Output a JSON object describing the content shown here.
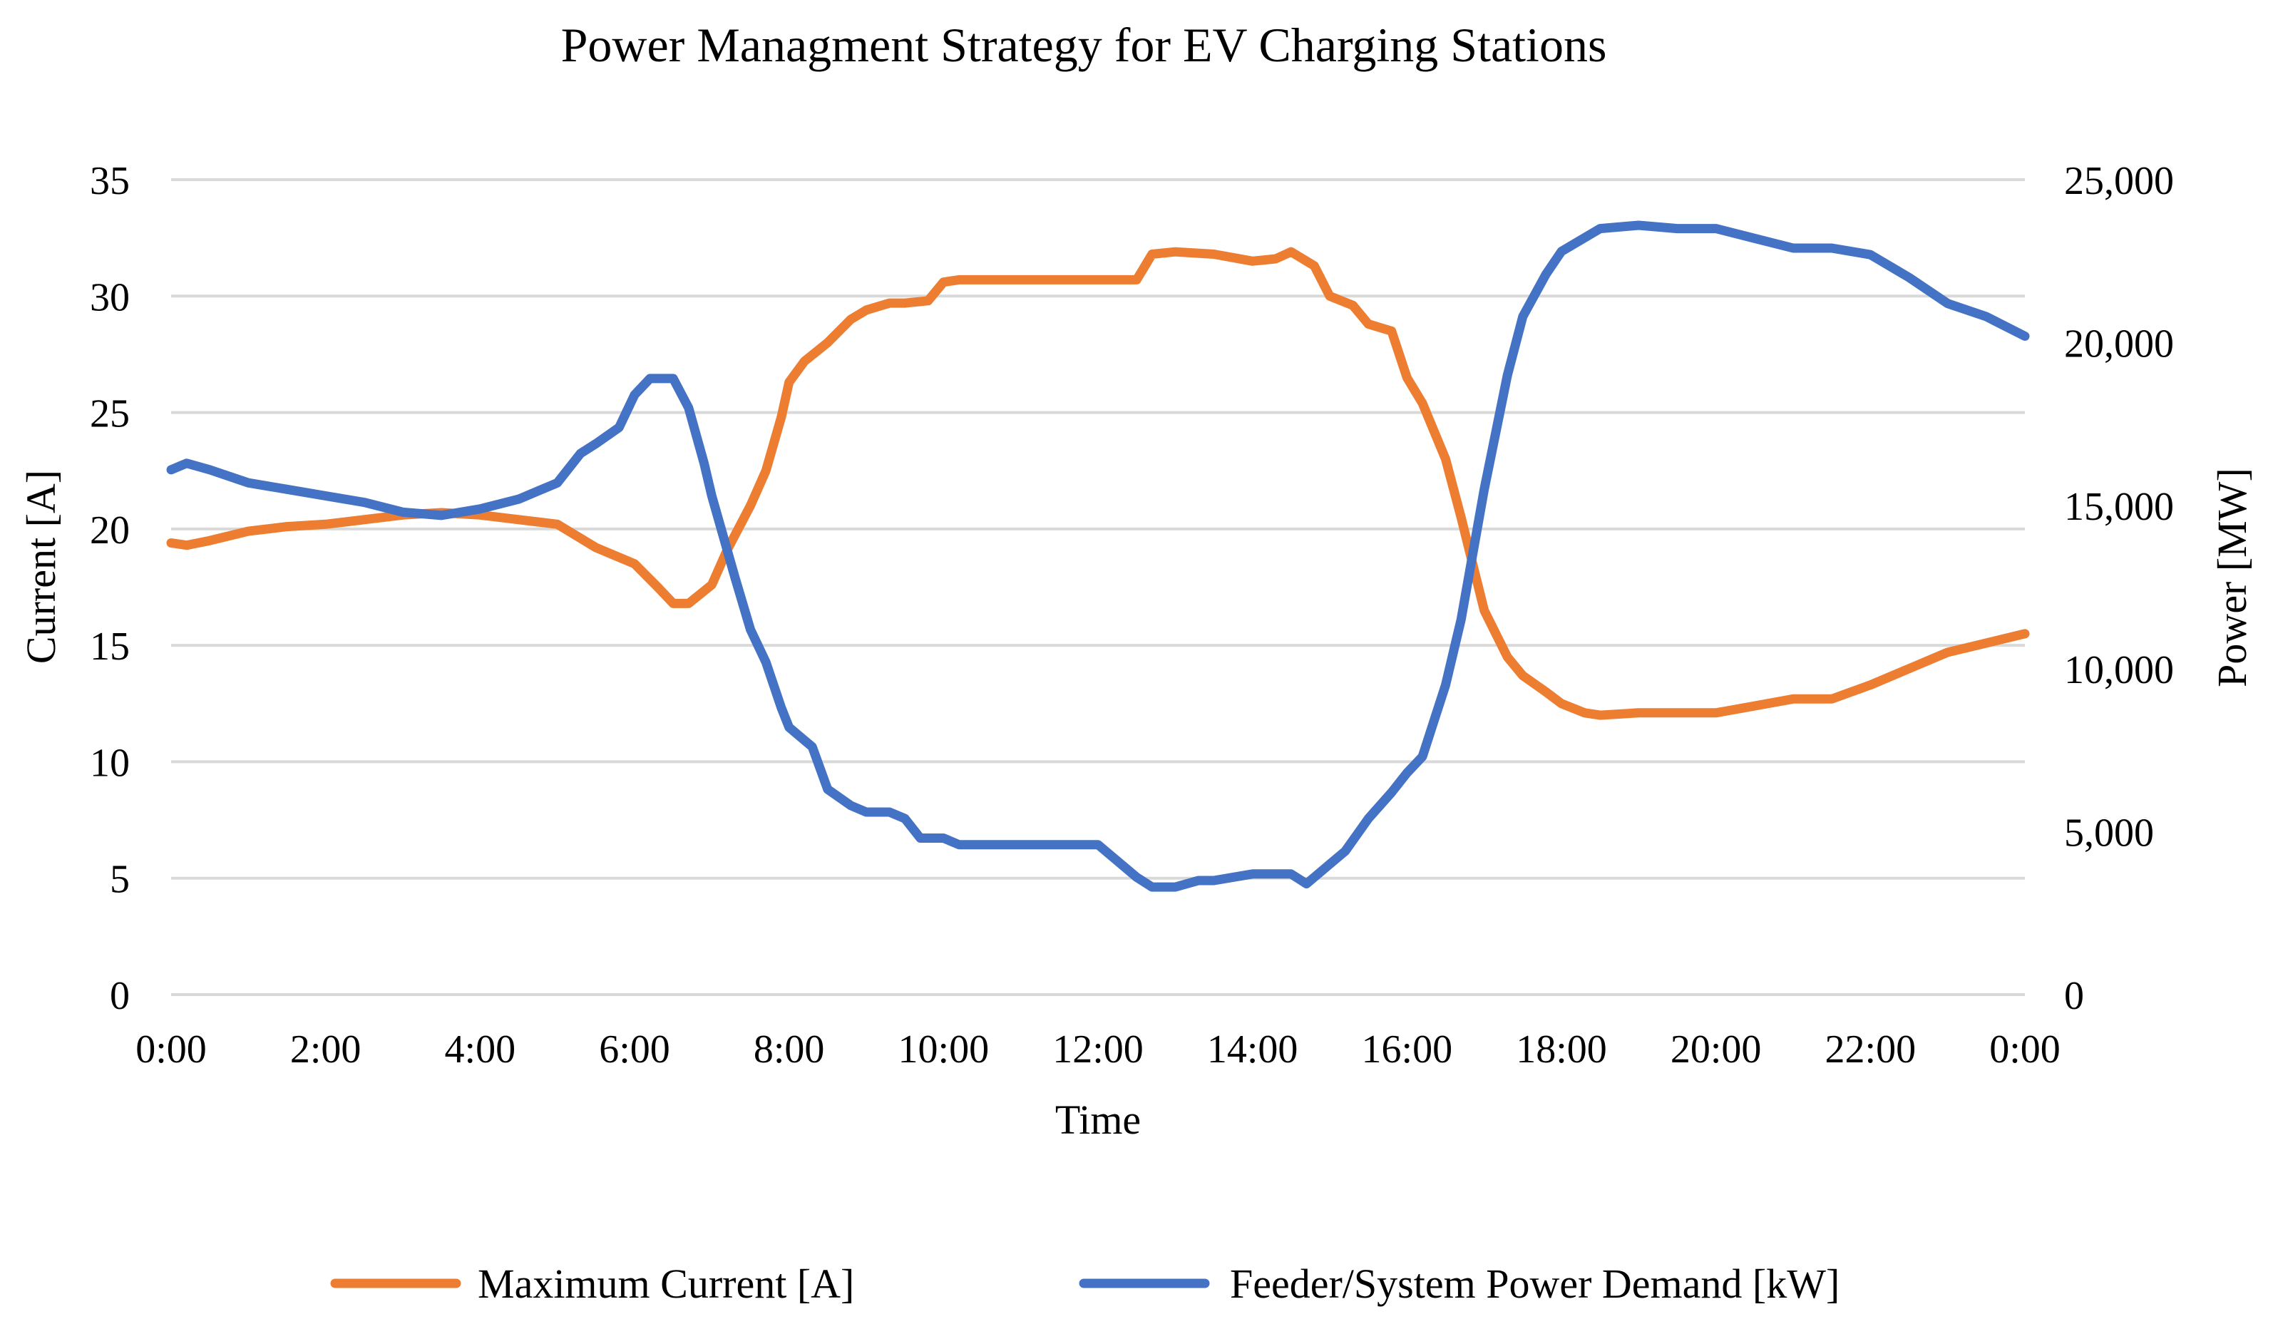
{
  "chart_data": {
    "type": "line",
    "title": "Power Managment Strategy for EV Charging Stations",
    "xlabel": "Time",
    "ylabel": "Current [A]",
    "y2label": "Power [MW]",
    "x_tick_labels": [
      "0:00",
      "2:00",
      "4:00",
      "6:00",
      "8:00",
      "10:00",
      "12:00",
      "14:00",
      "16:00",
      "18:00",
      "20:00",
      "22:00",
      "0:00"
    ],
    "ylim": [
      0,
      35
    ],
    "y_ticks": [
      0,
      5,
      10,
      15,
      20,
      25,
      30,
      35
    ],
    "y2lim": [
      0,
      25000
    ],
    "y2_ticks": [
      0,
      5000,
      10000,
      15000,
      20000,
      25000
    ],
    "y2_tick_labels": [
      "0",
      "5,000",
      "10,000",
      "15,000",
      "20,000",
      "25,000"
    ],
    "grid": true,
    "legend": "bottom-center",
    "x_unit": "hours",
    "series": [
      {
        "name": "Maximum Current [A]",
        "axis": "left",
        "color": "#ED7D31",
        "x": [
          0,
          0.2,
          0.5,
          1,
          1.5,
          2,
          2.5,
          3,
          3.5,
          4,
          4.5,
          5,
          5.5,
          6,
          6.3,
          6.5,
          6.7,
          7,
          7.2,
          7.5,
          7.7,
          7.9,
          8,
          8.2,
          8.5,
          8.8,
          9,
          9.3,
          9.5,
          9.8,
          10,
          10.2,
          10.5,
          11,
          11.5,
          12,
          12.5,
          12.7,
          13,
          13.5,
          14,
          14.3,
          14.5,
          14.8,
          15,
          15.3,
          15.5,
          15.8,
          16,
          16.2,
          16.5,
          16.7,
          17,
          17.3,
          17.5,
          17.8,
          18,
          18.3,
          18.5,
          19,
          19.5,
          20,
          20.5,
          21,
          21.5,
          22,
          22.5,
          23,
          23.5,
          24
        ],
        "values": [
          19.4,
          19.3,
          19.5,
          19.9,
          20.1,
          20.2,
          20.4,
          20.6,
          20.7,
          20.6,
          20.4,
          20.2,
          19.2,
          18.5,
          17.5,
          16.8,
          16.8,
          17.6,
          19.1,
          21.0,
          22.5,
          24.8,
          26.3,
          27.2,
          28.0,
          29.0,
          29.4,
          29.7,
          29.7,
          29.8,
          30.6,
          30.7,
          30.7,
          30.7,
          30.7,
          30.7,
          30.7,
          31.8,
          31.9,
          31.8,
          31.5,
          31.6,
          31.9,
          31.3,
          30.0,
          29.6,
          28.8,
          28.5,
          26.5,
          25.4,
          23.0,
          20.5,
          16.5,
          14.5,
          13.7,
          13.0,
          12.5,
          12.1,
          12.0,
          12.1,
          12.1,
          12.1,
          12.4,
          12.7,
          12.7,
          13.3,
          14.0,
          14.7,
          15.1,
          15.5
        ]
      },
      {
        "name": "Feeder/System Power Demand [kW]",
        "axis": "right",
        "color": "#4472C4",
        "x": [
          0,
          0.2,
          0.5,
          1,
          1.5,
          2,
          2.5,
          3,
          3.5,
          4,
          4.5,
          5,
          5.3,
          5.5,
          5.8,
          6,
          6.2,
          6.5,
          6.7,
          6.9,
          7,
          7.3,
          7.5,
          7.7,
          7.9,
          8,
          8.3,
          8.5,
          8.8,
          9,
          9.3,
          9.5,
          9.7,
          10,
          10.2,
          10.5,
          11,
          11.5,
          12,
          12.5,
          12.7,
          13,
          13.3,
          13.5,
          14,
          14.5,
          14.7,
          15,
          15.2,
          15.5,
          15.8,
          16,
          16.2,
          16.5,
          16.7,
          17,
          17.3,
          17.5,
          17.8,
          18,
          18.5,
          19,
          19.5,
          20,
          20.5,
          21,
          21.5,
          22,
          22.5,
          23,
          23.5,
          24
        ],
        "values": [
          16100,
          16300,
          16100,
          15700,
          15500,
          15300,
          15100,
          14800,
          14700,
          14900,
          15200,
          15700,
          16600,
          16900,
          17400,
          18400,
          18900,
          18900,
          18000,
          16300,
          15300,
          12800,
          11200,
          10200,
          8800,
          8200,
          7600,
          6300,
          5800,
          5600,
          5600,
          5400,
          4800,
          4800,
          4600,
          4600,
          4600,
          4600,
          4600,
          3600,
          3300,
          3300,
          3500,
          3500,
          3700,
          3700,
          3400,
          4000,
          4400,
          5400,
          6200,
          6800,
          7300,
          9500,
          11500,
          15500,
          19000,
          20800,
          22100,
          22800,
          23500,
          23600,
          23500,
          23500,
          23200,
          22900,
          22900,
          22700,
          22000,
          21200,
          20800,
          20200
        ]
      }
    ]
  }
}
